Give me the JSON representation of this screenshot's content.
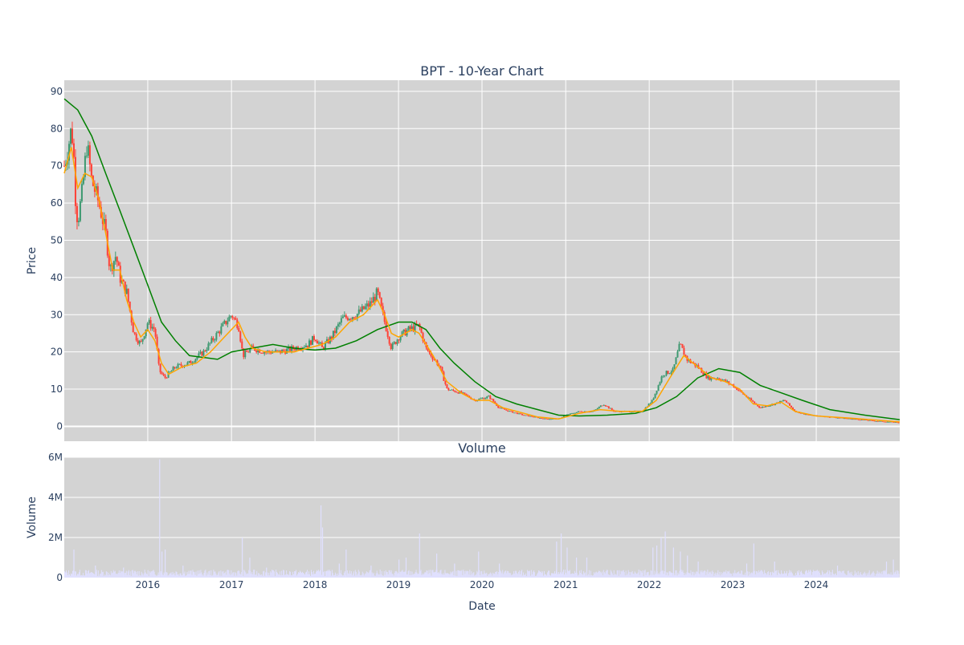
{
  "chart_data": [
    {
      "type": "candlestick",
      "title": "BPT - 10-Year Chart",
      "ylabel": "Price",
      "ylim": [
        -4,
        93
      ],
      "y_ticks": [
        0,
        10,
        20,
        30,
        40,
        50,
        60,
        70,
        80,
        90
      ],
      "x_range": [
        "2015-01-01",
        "2024-12-31"
      ],
      "grid": true,
      "colors": {
        "background": "#d3d3d3",
        "grid": "#ffffff",
        "increasing": "#3d9970",
        "decreasing": "#ff4136",
        "ma_short": "#ffa500",
        "ma_long": "#008000"
      },
      "series": [
        {
          "name": "",
          "kind": "price",
          "points": [
            [
              "2015-01-01",
              70
            ],
            [
              "2015-01-15",
              74
            ],
            [
              "2015-02-01",
              80
            ],
            [
              "2015-02-10",
              75
            ],
            [
              "2015-02-20",
              60
            ],
            [
              "2015-03-01",
              55
            ],
            [
              "2015-03-20",
              63
            ],
            [
              "2015-04-10",
              76
            ],
            [
              "2015-05-01",
              66
            ],
            [
              "2015-06-01",
              60
            ],
            [
              "2015-07-01",
              52
            ],
            [
              "2015-07-20",
              42
            ],
            [
              "2015-08-15",
              46
            ],
            [
              "2015-09-01",
              40
            ],
            [
              "2015-10-01",
              36
            ],
            [
              "2015-11-01",
              25
            ],
            [
              "2015-12-01",
              22
            ],
            [
              "2016-01-01",
              28
            ],
            [
              "2016-02-01",
              26
            ],
            [
              "2016-02-20",
              15
            ],
            [
              "2016-03-15",
              13
            ],
            [
              "2016-05-01",
              16
            ],
            [
              "2016-07-01",
              17
            ],
            [
              "2016-09-01",
              20
            ],
            [
              "2016-11-01",
              25
            ],
            [
              "2017-01-01",
              30
            ],
            [
              "2017-02-01",
              27
            ],
            [
              "2017-02-20",
              19
            ],
            [
              "2017-04-01",
              21
            ],
            [
              "2017-06-01",
              20
            ],
            [
              "2017-08-01",
              20
            ],
            [
              "2017-10-01",
              21
            ],
            [
              "2017-12-01",
              22
            ],
            [
              "2018-01-01",
              24
            ],
            [
              "2018-02-01",
              21
            ],
            [
              "2018-03-15",
              24
            ],
            [
              "2018-05-01",
              29
            ],
            [
              "2018-07-01",
              30
            ],
            [
              "2018-09-01",
              33
            ],
            [
              "2018-10-01",
              36
            ],
            [
              "2018-10-20",
              31
            ],
            [
              "2018-11-10",
              26
            ],
            [
              "2018-12-01",
              21
            ],
            [
              "2019-01-01",
              24
            ],
            [
              "2019-02-15",
              26
            ],
            [
              "2019-04-01",
              27
            ],
            [
              "2019-05-01",
              21
            ],
            [
              "2019-07-01",
              16
            ],
            [
              "2019-08-01",
              10
            ],
            [
              "2019-10-01",
              9
            ],
            [
              "2019-12-01",
              7
            ],
            [
              "2020-02-01",
              8
            ],
            [
              "2020-03-15",
              5
            ],
            [
              "2020-05-01",
              4
            ],
            [
              "2020-07-01",
              3
            ],
            [
              "2020-10-01",
              2
            ],
            [
              "2020-12-01",
              2
            ],
            [
              "2021-01-01",
              3
            ],
            [
              "2021-03-01",
              4
            ],
            [
              "2021-05-01",
              4
            ],
            [
              "2021-06-15",
              6
            ],
            [
              "2021-08-01",
              4
            ],
            [
              "2021-10-01",
              4
            ],
            [
              "2021-12-01",
              4
            ],
            [
              "2022-01-15",
              7
            ],
            [
              "2022-03-01",
              14
            ],
            [
              "2022-04-15",
              15
            ],
            [
              "2022-05-15",
              22
            ],
            [
              "2022-06-15",
              18
            ],
            [
              "2022-08-01",
              16
            ],
            [
              "2022-09-15",
              13
            ],
            [
              "2022-11-01",
              13
            ],
            [
              "2023-01-01",
              11
            ],
            [
              "2023-03-01",
              8
            ],
            [
              "2023-05-01",
              5
            ],
            [
              "2023-07-01",
              6
            ],
            [
              "2023-08-15",
              7
            ],
            [
              "2023-10-01",
              4
            ],
            [
              "2023-12-01",
              3
            ],
            [
              "2024-03-01",
              2.5
            ],
            [
              "2024-06-01",
              2
            ],
            [
              "2024-09-01",
              1.5
            ],
            [
              "2024-12-31",
              1
            ]
          ]
        },
        {
          "name": "",
          "kind": "short_ma",
          "points": [
            [
              "2015-01-01",
              68
            ],
            [
              "2015-02-01",
              75
            ],
            [
              "2015-03-01",
              64
            ],
            [
              "2015-04-01",
              68
            ],
            [
              "2015-05-01",
              67
            ],
            [
              "2015-06-01",
              61
            ],
            [
              "2015-07-01",
              52
            ],
            [
              "2015-08-01",
              42
            ],
            [
              "2015-09-01",
              42
            ],
            [
              "2015-10-01",
              34
            ],
            [
              "2015-11-01",
              28
            ],
            [
              "2015-12-01",
              24
            ],
            [
              "2016-01-01",
              26
            ],
            [
              "2016-02-01",
              23
            ],
            [
              "2016-03-01",
              17
            ],
            [
              "2016-04-01",
              14
            ],
            [
              "2016-06-01",
              16
            ],
            [
              "2016-08-01",
              17
            ],
            [
              "2016-10-01",
              20
            ],
            [
              "2016-12-01",
              24
            ],
            [
              "2017-02-01",
              28
            ],
            [
              "2017-03-01",
              24
            ],
            [
              "2017-04-01",
              21
            ],
            [
              "2017-06-01",
              20
            ],
            [
              "2017-08-01",
              20
            ],
            [
              "2017-10-01",
              20
            ],
            [
              "2017-12-01",
              21
            ],
            [
              "2018-02-01",
              22
            ],
            [
              "2018-04-01",
              24
            ],
            [
              "2018-06-01",
              28
            ],
            [
              "2018-08-01",
              30
            ],
            [
              "2018-10-01",
              34
            ],
            [
              "2018-11-01",
              30
            ],
            [
              "2018-12-01",
              25
            ],
            [
              "2019-01-01",
              24
            ],
            [
              "2019-03-01",
              26
            ],
            [
              "2019-04-01",
              25
            ],
            [
              "2019-06-01",
              19
            ],
            [
              "2019-08-01",
              12
            ],
            [
              "2019-10-01",
              9
            ],
            [
              "2019-12-01",
              7
            ],
            [
              "2020-02-01",
              7
            ],
            [
              "2020-04-01",
              5
            ],
            [
              "2020-06-01",
              4
            ],
            [
              "2020-09-01",
              2.5
            ],
            [
              "2020-12-01",
              2
            ],
            [
              "2021-03-01",
              3.5
            ],
            [
              "2021-06-01",
              4.5
            ],
            [
              "2021-09-01",
              4
            ],
            [
              "2021-12-01",
              4
            ],
            [
              "2022-02-01",
              7
            ],
            [
              "2022-04-01",
              13
            ],
            [
              "2022-06-01",
              19
            ],
            [
              "2022-08-01",
              16
            ],
            [
              "2022-10-01",
              13
            ],
            [
              "2022-12-01",
              12
            ],
            [
              "2023-02-01",
              10
            ],
            [
              "2023-04-01",
              6
            ],
            [
              "2023-06-01",
              5.5
            ],
            [
              "2023-08-01",
              6.5
            ],
            [
              "2023-10-01",
              4
            ],
            [
              "2024-01-01",
              2.8
            ],
            [
              "2024-06-01",
              2.2
            ],
            [
              "2024-12-31",
              1.2
            ]
          ]
        },
        {
          "name": "",
          "kind": "long_ma",
          "points": [
            [
              "2015-01-01",
              88
            ],
            [
              "2015-03-01",
              85
            ],
            [
              "2015-05-01",
              78
            ],
            [
              "2015-07-01",
              68
            ],
            [
              "2015-09-01",
              58
            ],
            [
              "2015-11-01",
              48
            ],
            [
              "2016-01-01",
              38
            ],
            [
              "2016-03-01",
              28
            ],
            [
              "2016-05-01",
              23
            ],
            [
              "2016-07-01",
              19
            ],
            [
              "2016-09-01",
              18.5
            ],
            [
              "2016-11-01",
              18
            ],
            [
              "2017-01-01",
              20
            ],
            [
              "2017-04-01",
              21
            ],
            [
              "2017-07-01",
              22
            ],
            [
              "2017-10-01",
              21
            ],
            [
              "2018-01-01",
              20.5
            ],
            [
              "2018-04-01",
              21
            ],
            [
              "2018-07-01",
              23
            ],
            [
              "2018-10-01",
              26
            ],
            [
              "2019-01-01",
              28
            ],
            [
              "2019-03-01",
              28
            ],
            [
              "2019-05-01",
              26
            ],
            [
              "2019-07-01",
              21
            ],
            [
              "2019-09-01",
              17
            ],
            [
              "2019-12-01",
              12
            ],
            [
              "2020-03-01",
              8
            ],
            [
              "2020-06-01",
              6
            ],
            [
              "2020-09-01",
              4.5
            ],
            [
              "2020-12-01",
              3
            ],
            [
              "2021-03-01",
              2.8
            ],
            [
              "2021-07-01",
              3
            ],
            [
              "2021-11-01",
              3.5
            ],
            [
              "2022-02-01",
              5
            ],
            [
              "2022-05-01",
              8
            ],
            [
              "2022-08-01",
              13
            ],
            [
              "2022-11-01",
              15.5
            ],
            [
              "2023-02-01",
              14.5
            ],
            [
              "2023-05-01",
              11
            ],
            [
              "2023-08-01",
              9
            ],
            [
              "2023-11-01",
              7
            ],
            [
              "2024-03-01",
              4.5
            ],
            [
              "2024-08-01",
              3
            ],
            [
              "2024-12-31",
              1.8
            ]
          ]
        }
      ]
    },
    {
      "type": "bar",
      "title": "Volume",
      "xlabel": "Date",
      "ylabel": "Volume",
      "ylim": [
        0,
        6000000
      ],
      "y_ticks": [
        0,
        2000000,
        4000000,
        6000000
      ],
      "y_tick_labels": [
        "0",
        "2M",
        "4M",
        "6M"
      ],
      "x_ticks": [
        "2016-01-01",
        "2017-01-01",
        "2018-01-01",
        "2019-01-01",
        "2020-01-01",
        "2021-01-01",
        "2022-01-01",
        "2023-01-01",
        "2024-01-01"
      ],
      "x_tick_labels": [
        "2016",
        "2017",
        "2018",
        "2019",
        "2020",
        "2021",
        "2022",
        "2023",
        "2024"
      ],
      "colors": {
        "background": "#d3d3d3",
        "bar": "#e0e0ff",
        "grid": "#ffffff"
      },
      "volume_spikes": [
        [
          "2015-02-10",
          1400000
        ],
        [
          "2015-05-15",
          600000
        ],
        [
          "2015-09-15",
          500000
        ],
        [
          "2016-02-20",
          5900000
        ],
        [
          "2016-03-01",
          1300000
        ],
        [
          "2016-03-15",
          1400000
        ],
        [
          "2016-06-01",
          600000
        ],
        [
          "2017-02-15",
          2000000
        ],
        [
          "2017-03-20",
          1000000
        ],
        [
          "2017-06-01",
          500000
        ],
        [
          "2018-01-25",
          3600000
        ],
        [
          "2018-02-01",
          2500000
        ],
        [
          "2018-04-15",
          700000
        ],
        [
          "2018-05-15",
          1400000
        ],
        [
          "2018-09-01",
          600000
        ],
        [
          "2019-01-01",
          900000
        ],
        [
          "2019-02-01",
          1000000
        ],
        [
          "2019-04-01",
          2200000
        ],
        [
          "2019-06-15",
          1200000
        ],
        [
          "2019-09-01",
          700000
        ],
        [
          "2019-12-15",
          1300000
        ],
        [
          "2020-03-15",
          700000
        ],
        [
          "2020-11-20",
          1800000
        ],
        [
          "2020-12-10",
          2200000
        ],
        [
          "2021-01-05",
          1500000
        ],
        [
          "2021-02-15",
          1000000
        ],
        [
          "2021-04-01",
          1000000
        ],
        [
          "2022-01-15",
          1500000
        ],
        [
          "2022-02-01",
          1600000
        ],
        [
          "2022-02-20",
          2000000
        ],
        [
          "2022-03-10",
          2300000
        ],
        [
          "2022-04-15",
          1500000
        ],
        [
          "2022-05-15",
          1300000
        ],
        [
          "2022-06-15",
          1100000
        ],
        [
          "2022-08-01",
          800000
        ],
        [
          "2023-03-01",
          700000
        ],
        [
          "2023-04-01",
          1700000
        ],
        [
          "2023-07-01",
          800000
        ],
        [
          "2024-04-01",
          600000
        ],
        [
          "2024-11-01",
          800000
        ],
        [
          "2024-12-01",
          900000
        ]
      ]
    }
  ]
}
